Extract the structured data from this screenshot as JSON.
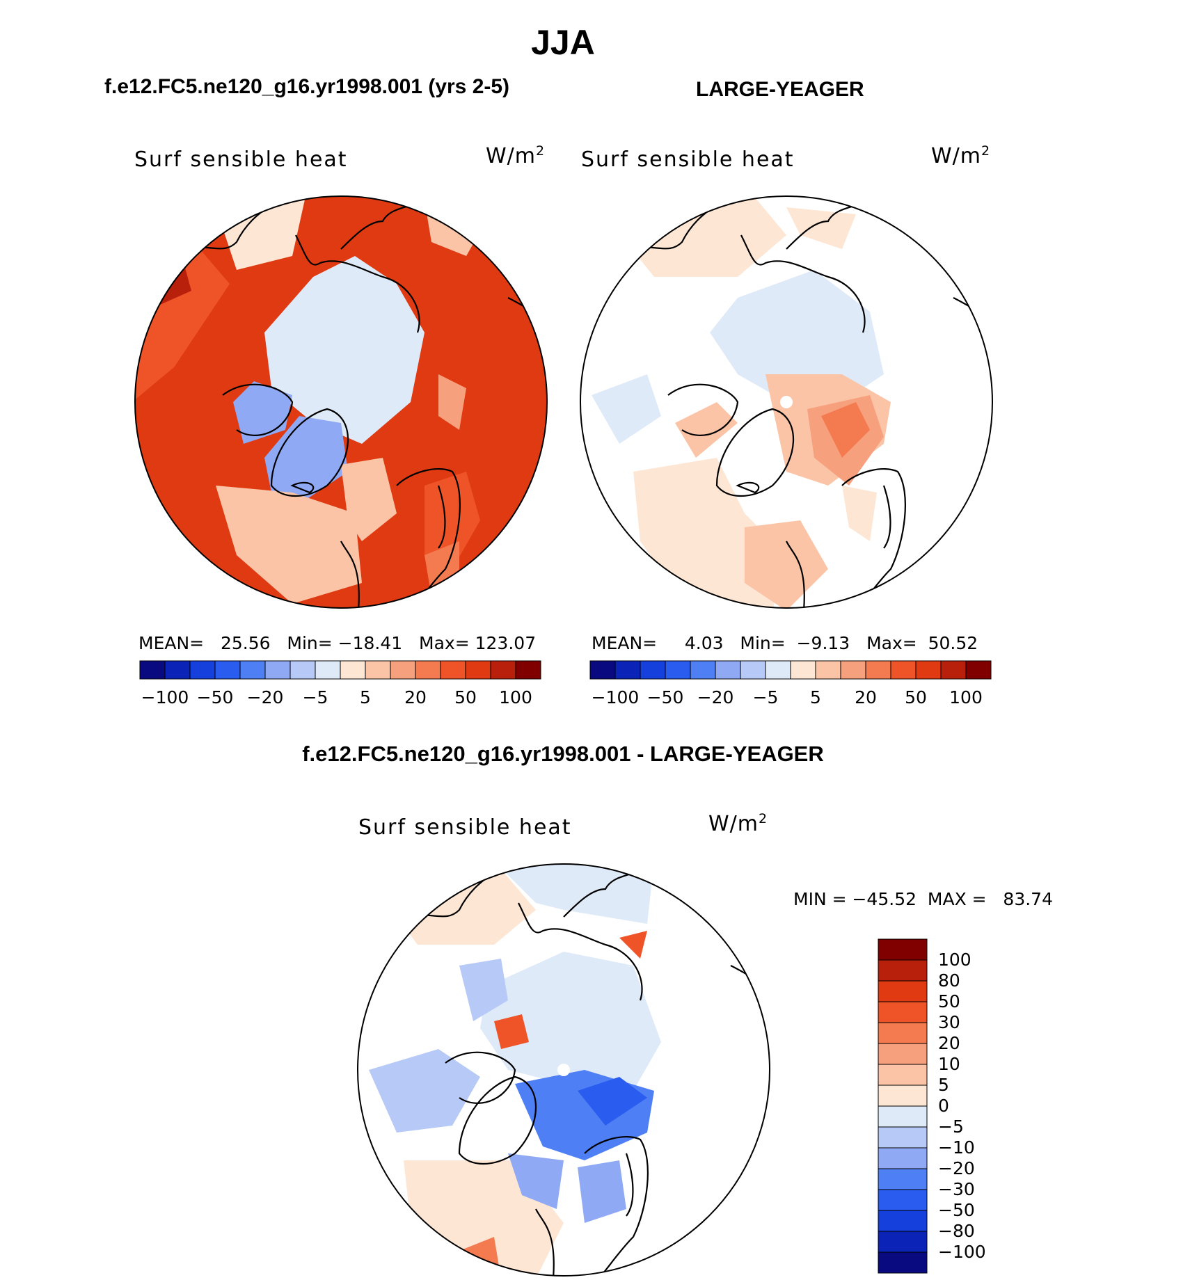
{
  "header": {
    "title": "JJA",
    "left_case": "f.e12.FC5.ne120_g16.yr1998.001 (yrs 2-5)",
    "right_case": "LARGE-YEAGER",
    "diff_title": "f.e12.FC5.ne120_g16.yr1998.001 - LARGE-YEAGER"
  },
  "panels": [
    {
      "variable": "Surf  sensible  heat",
      "units_base": "W/m",
      "units_exp": "2"
    },
    {
      "variable": "Surf  sensible  heat",
      "units_base": "W/m",
      "units_exp": "2"
    },
    {
      "variable": "Surf  sensible  heat",
      "units_base": "W/m",
      "units_exp": "2"
    }
  ],
  "stats": {
    "left": {
      "mean_label": "MEAN=",
      "mean": "25.56",
      "min_label": "Min=",
      "min": "−18.41",
      "max_label": "Max=",
      "max": "123.07"
    },
    "right": {
      "mean_label": "MEAN=",
      "mean": "4.03",
      "min_label": "Min=",
      "min": "−9.13",
      "max_label": "Max=",
      "max": "50.52"
    },
    "diff": "MIN = −45.52  MAX =   83.74"
  },
  "chart_data": [
    {
      "type": "heatmap",
      "projection": "north-polar-stereographic",
      "title": "f.e12.FC5.ne120_g16.yr1998.001 (yrs 2-5)",
      "variable": "Surf sensible heat",
      "units": "W/m2",
      "mean": 25.56,
      "min": -18.41,
      "max": 123.07,
      "colorbar_ticks": [
        "−100",
        "−50",
        "−20",
        "−5",
        "5",
        "20",
        "50",
        "100"
      ],
      "colorbar_colors": [
        "#0a0a80",
        "#0c23b8",
        "#1540dc",
        "#2a5cf0",
        "#4f7ff5",
        "#8fa9f5",
        "#b7caf7",
        "#dfeaf9",
        "#fde6d4",
        "#fbc4a6",
        "#f7a07d",
        "#f47a50",
        "#ef5428",
        "#df3a12",
        "#b8200c",
        "#800000"
      ]
    },
    {
      "type": "heatmap",
      "projection": "north-polar-stereographic",
      "title": "LARGE-YEAGER",
      "variable": "Surf sensible heat",
      "units": "W/m2",
      "mean": 4.03,
      "min": -9.13,
      "max": 50.52,
      "colorbar_ticks": [
        "−100",
        "−50",
        "−20",
        "−5",
        "5",
        "20",
        "50",
        "100"
      ],
      "colorbar_colors": [
        "#0a0a80",
        "#0c23b8",
        "#1540dc",
        "#2a5cf0",
        "#4f7ff5",
        "#8fa9f5",
        "#b7caf7",
        "#dfeaf9",
        "#fde6d4",
        "#fbc4a6",
        "#f7a07d",
        "#f47a50",
        "#ef5428",
        "#df3a12",
        "#b8200c",
        "#800000"
      ]
    },
    {
      "type": "heatmap",
      "projection": "north-polar-stereographic",
      "title": "f.e12.FC5.ne120_g16.yr1998.001 - LARGE-YEAGER",
      "variable": "Surf sensible heat",
      "units": "W/m2",
      "min": -45.52,
      "max": 83.74,
      "colorbar_ticks": [
        "100",
        "80",
        "50",
        "30",
        "20",
        "10",
        "5",
        "0",
        "−5",
        "−10",
        "−20",
        "−30",
        "−50",
        "−80",
        "−100"
      ],
      "colorbar_colors": [
        "#800000",
        "#b8200c",
        "#df3a12",
        "#ef5428",
        "#f47a50",
        "#f7a07d",
        "#fbc4a6",
        "#fde6d4",
        "#dfeaf9",
        "#b7caf7",
        "#8fa9f5",
        "#4f7ff5",
        "#2a5cf0",
        "#1540dc",
        "#0c23b8",
        "#0a0a80"
      ]
    }
  ]
}
